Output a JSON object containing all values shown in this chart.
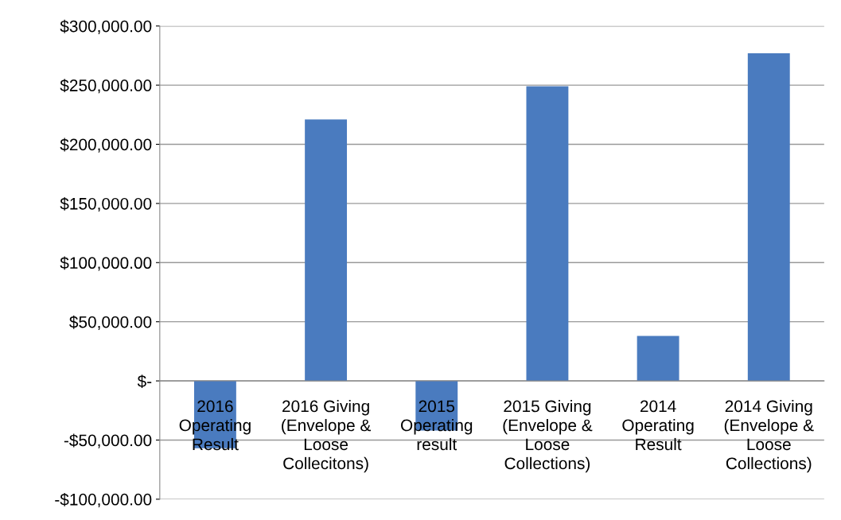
{
  "chart_data": {
    "type": "bar",
    "categories": [
      "2016 Operating Result",
      "2016 Giving (Envelope & Loose Collecitons)",
      "2015 Operating result",
      "2015 Giving (Envelope & Loose Collections)",
      "2014 Operating Result",
      "2014 Giving (Envelope & Loose Collections)"
    ],
    "values": [
      -57000,
      221000,
      -42000,
      249000,
      38000,
      277000
    ],
    "color": "#4a7bbf",
    "ylim": [
      -100000,
      300000
    ],
    "yticks": [
      {
        "value": -100000,
        "label": "-$100,000.00"
      },
      {
        "value": -50000,
        "label": "-$50,000.00"
      },
      {
        "value": 0,
        "label": "$-"
      },
      {
        "value": 50000,
        "label": "$50,000.00"
      },
      {
        "value": 100000,
        "label": "$100,000.00"
      },
      {
        "value": 150000,
        "label": "$150,000.00"
      },
      {
        "value": 200000,
        "label": "$200,000.00"
      },
      {
        "value": 250000,
        "label": "$250,000.00"
      },
      {
        "value": 300000,
        "label": "$300,000.00"
      }
    ],
    "grid": "y",
    "legend": false
  }
}
